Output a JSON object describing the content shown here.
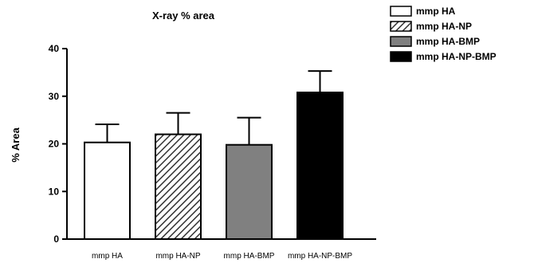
{
  "chart_data": {
    "type": "bar",
    "title": "X-ray % area",
    "ylabel": "% Area",
    "xlabel": "",
    "ylim": [
      0,
      40
    ],
    "yticks": [
      0,
      10,
      20,
      30,
      40
    ],
    "categories": [
      "mmp HA",
      "mmp HA-NP",
      "mmp HA-BMP",
      "mmp HA-NP-BMP"
    ],
    "values": [
      20.3,
      22.0,
      19.8,
      30.8
    ],
    "errors": [
      3.8,
      4.5,
      5.7,
      4.5
    ],
    "fills": [
      "white",
      "hatched",
      "gray",
      "black"
    ],
    "colors": [
      "#ffffff",
      "#888888",
      "#808080",
      "#000000"
    ],
    "legend": {
      "placement": "top-right",
      "entries": [
        "mmp HA",
        "mmp HA-NP",
        "mmp HA-BMP",
        "mmp HA-NP-BMP"
      ]
    },
    "grid": false
  }
}
